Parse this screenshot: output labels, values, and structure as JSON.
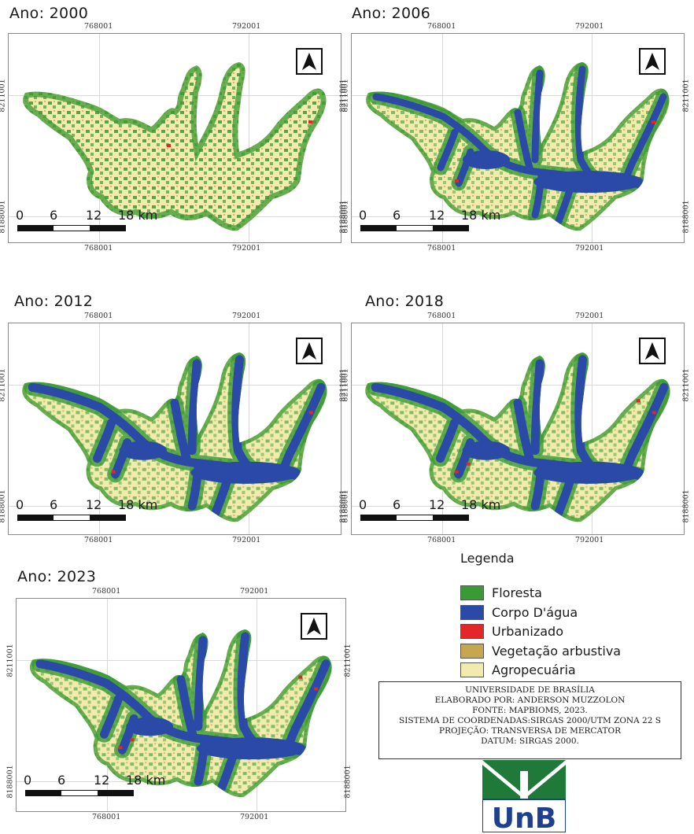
{
  "maps": [
    {
      "id": "m2000",
      "title": "Ano: 2000",
      "stage": 0
    },
    {
      "id": "m2006",
      "title": "Ano: 2006",
      "stage": 1
    },
    {
      "id": "m2012",
      "title": "Ano: 2012",
      "stage": 2
    },
    {
      "id": "m2018",
      "title": "Ano: 2018",
      "stage": 3
    },
    {
      "id": "m2023",
      "title": "Ano: 2023",
      "stage": 4
    }
  ],
  "coords": {
    "easting_left": "768001",
    "easting_right": "792001",
    "northing_top": "8211001",
    "northing_bottom": "8188001"
  },
  "scale": {
    "ticks": [
      "0",
      "6",
      "12",
      "18 km"
    ]
  },
  "legend": {
    "title": "Legenda",
    "items": [
      {
        "label": "Floresta",
        "color": "#3a9a33"
      },
      {
        "label": "Corpo D'água",
        "color": "#2b49a6"
      },
      {
        "label": "Urbanizado",
        "color": "#e2262a"
      },
      {
        "label": "Vegetação arbustiva",
        "color": "#c7a650"
      },
      {
        "label": "Agropecuária",
        "color": "#f1ecad"
      }
    ]
  },
  "credits": {
    "lines": [
      "UNIVERSIDADE DE BRASÍLIA",
      "ELABORADO POR: ANDERSON MUZZOLON",
      "FONTE: MAPBIOMS, 2023.",
      "SISTEMA DE COORDENADAS:SIRGAS 2000/UTM ZONA 22 S",
      "PROJEÇÃO: TRANSVERSA DE MERCATOR",
      "DATUM: SIRGAS 2000."
    ]
  },
  "logo": {
    "text": "UnB",
    "colors": {
      "green": "#1f7a3a",
      "blue": "#1f3f8f"
    }
  }
}
